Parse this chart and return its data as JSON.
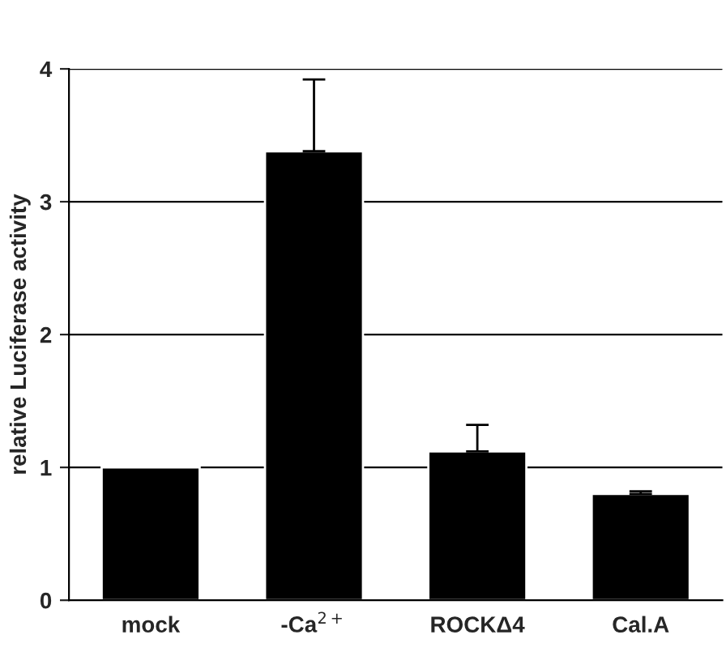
{
  "chart_data": {
    "type": "bar",
    "ylabel": "relative Luciferase activity",
    "categories": [
      "mock",
      "-Ca$^{2+}$",
      "ROCKΔ4",
      "Cal.A"
    ],
    "values": [
      1.0,
      3.38,
      1.12,
      0.8
    ],
    "errors": [
      null,
      [
        3.38,
        3.92
      ],
      [
        1.12,
        1.32
      ],
      [
        0.8,
        0.82
      ]
    ],
    "color": "#000000",
    "ylim": [
      0,
      4
    ],
    "yticks": [
      0,
      1,
      2,
      3,
      4
    ],
    "grid": "y",
    "legend": false
  }
}
